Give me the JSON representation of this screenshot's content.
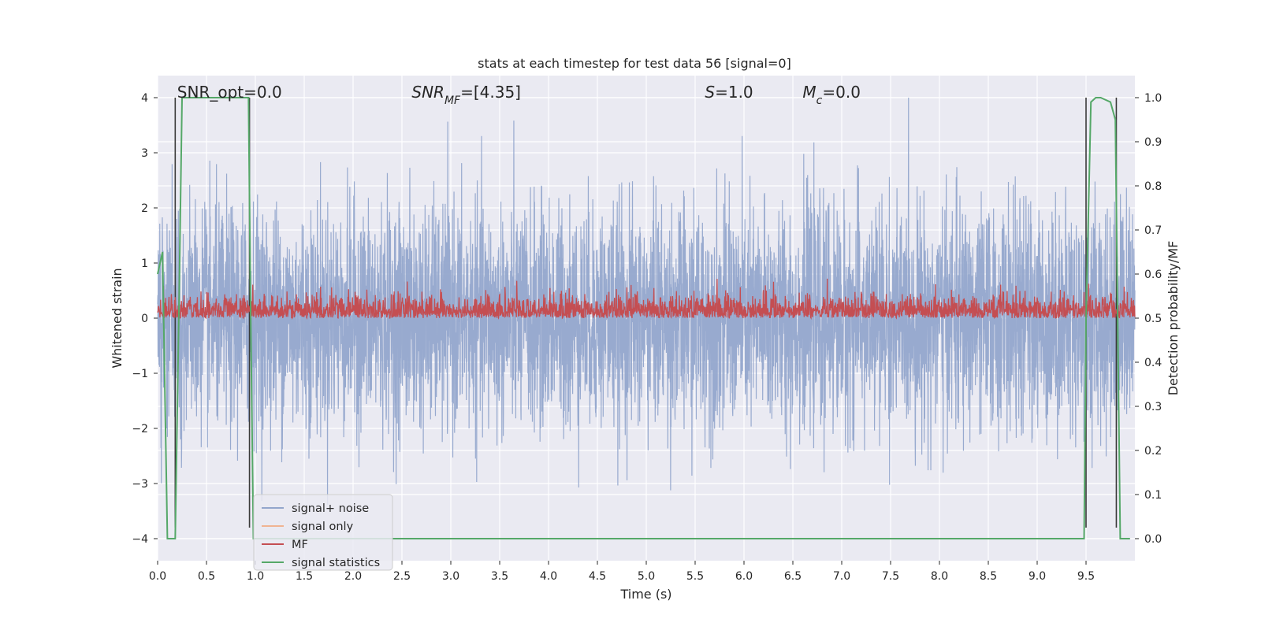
{
  "chart_data": {
    "type": "line",
    "title": "stats at each timestep for test data 56 [signal=0]",
    "xlabel": "Time (s)",
    "ylabel": "Whitened strain",
    "y2label": "Detection probability/MF",
    "xlim": [
      0,
      10
    ],
    "ylim": [
      -4.4,
      4.4
    ],
    "y2lim": [
      -0.05,
      1.05
    ],
    "x_ticks": [
      "0.0",
      "0.5",
      "1.0",
      "1.5",
      "2.0",
      "2.5",
      "3.0",
      "3.5",
      "4.0",
      "4.5",
      "5.0",
      "5.5",
      "6.0",
      "6.5",
      "7.0",
      "7.5",
      "8.0",
      "8.5",
      "9.0",
      "9.5"
    ],
    "y_ticks": [
      "-4",
      "-3",
      "-2",
      "-1",
      "0",
      "1",
      "2",
      "3",
      "4"
    ],
    "y2_ticks": [
      "0.0",
      "0.1",
      "0.2",
      "0.3",
      "0.4",
      "0.5",
      "0.6",
      "0.7",
      "0.8",
      "0.9",
      "1.0"
    ],
    "grid": true,
    "legend_position": "lower-left",
    "annotations": [
      {
        "parts": [
          {
            "t": "SNR_opt=0.0",
            "i": false
          }
        ],
        "x": 0.2
      },
      {
        "parts": [
          {
            "t": "SNR",
            "i": true
          },
          {
            "t": "MF",
            "i": true,
            "sub": true
          },
          {
            "t": "=[4.35]",
            "i": false
          }
        ],
        "x": 2.6
      },
      {
        "parts": [
          {
            "t": "S",
            "i": true
          },
          {
            "t": "=1.0",
            "i": false
          }
        ],
        "x": 5.6
      },
      {
        "parts": [
          {
            "t": "M",
            "i": true
          },
          {
            "t": "c",
            "i": true,
            "sub": true
          },
          {
            "t": "=0.0",
            "i": false
          }
        ],
        "x": 6.6
      }
    ],
    "vertical_lines_x": [
      0.18,
      0.94,
      9.5,
      9.81
    ],
    "series": [
      {
        "name": "signal+ noise",
        "color": "#93a6cc",
        "description": "whitened noise samples between about -4 and 4",
        "y_envelope_upper": 2.4,
        "y_envelope_lower": -2.2,
        "y_min": -3.9,
        "y_max": 4.0
      },
      {
        "name": "signal only",
        "color": "#f0b492",
        "values_note": "zero signal"
      },
      {
        "name": "MF",
        "color": "#c44e52",
        "axis": "right",
        "y_range": [
          0.5,
          0.6
        ]
      },
      {
        "name": "signal statistics",
        "color": "#55a868",
        "axis": "right",
        "x": [
          0.0,
          0.05,
          0.1,
          0.12,
          0.18,
          0.22,
          0.25,
          0.93,
          0.95,
          0.98,
          1.0,
          9.48,
          9.5,
          9.55,
          9.6,
          9.65,
          9.75,
          9.8,
          9.85,
          9.9,
          9.95
        ],
        "y": [
          0.6,
          0.65,
          0.0,
          0.0,
          0.0,
          0.55,
          1.0,
          1.0,
          0.55,
          0.0,
          0.0,
          0.0,
          0.5,
          0.99,
          1.0,
          1.0,
          0.99,
          0.95,
          0.0,
          0.0,
          0.0
        ]
      }
    ]
  }
}
